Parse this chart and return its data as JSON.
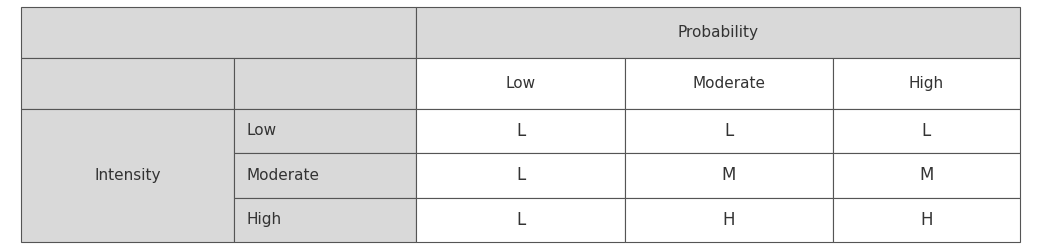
{
  "bg_color": "#d9d9d9",
  "white_color": "#ffffff",
  "border_color": "#555555",
  "prob_header": "Probability",
  "prob_levels": [
    "Low",
    "Moderate",
    "High"
  ],
  "intensity_label": "Intensity",
  "intensity_levels": [
    "Low",
    "Moderate",
    "High"
  ],
  "data": [
    [
      "L",
      "L",
      "L"
    ],
    [
      "L",
      "M",
      "M"
    ],
    [
      "L",
      "H",
      "H"
    ]
  ],
  "font_size": 11,
  "font_size_data": 12
}
